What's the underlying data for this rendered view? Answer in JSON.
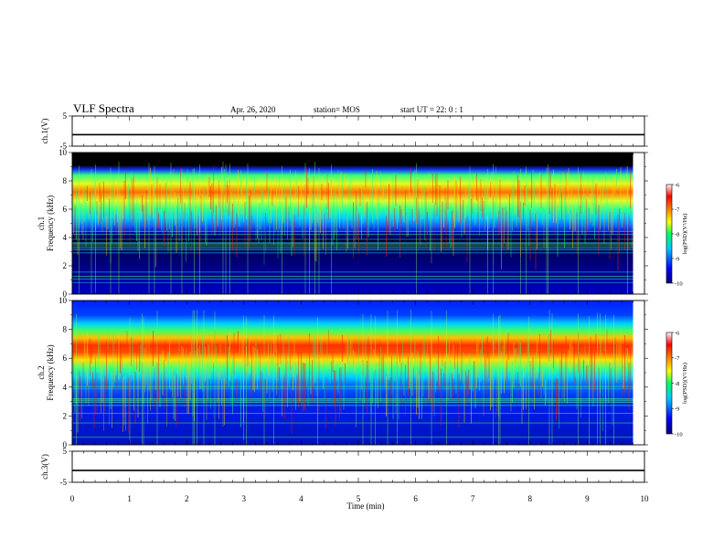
{
  "header": {
    "title": "VLF Spectra",
    "date": "Apr. 26, 2020",
    "station": "station= MOS",
    "start": "start  UT =   22: 0  : 1"
  },
  "chart_data": {
    "type": "heatmap",
    "xlabel": "Time  (min)",
    "xlim": [
      0,
      10
    ],
    "xticks": [
      "0",
      "1",
      "2",
      "3",
      "4",
      "5",
      "6",
      "7",
      "8",
      "9",
      "10"
    ],
    "data_end_min": 9.8,
    "panels": [
      {
        "kind": "line",
        "ylabel": "ch.1(V)",
        "ylim": [
          -5,
          5
        ],
        "yticks": [
          "5",
          "-5"
        ],
        "level": -1.2
      },
      {
        "kind": "spectrogram",
        "ylabel_top": "ch.1",
        "ylabel": "Frequency  (kHz)",
        "ylim": [
          0,
          10
        ],
        "yticks": [
          "10",
          "8",
          "6",
          "4",
          "2",
          "0"
        ],
        "band_center_khz": 7,
        "colorbar_label": "log(PSD)(V²/Hz)",
        "colorbar_ticks": [
          "-6",
          "-7",
          "-8",
          "-9",
          "-10"
        ]
      },
      {
        "kind": "spectrogram",
        "ylabel_top": "ch.2",
        "ylabel": "Frequency  (kHz)",
        "ylim": [
          0,
          10
        ],
        "yticks": [
          "10",
          "8",
          "6",
          "4",
          "2",
          "0"
        ],
        "band_center_khz": 6.7,
        "colorbar_label": "log(PSD)(V²/Hz)",
        "colorbar_ticks": [
          "-6",
          "-7",
          "-8",
          "-9",
          "-10"
        ]
      },
      {
        "kind": "line",
        "ylabel": "ch.3(V)",
        "ylim": [
          -5,
          5
        ],
        "yticks": [
          "5",
          "-5"
        ],
        "level": -1.2
      }
    ]
  }
}
